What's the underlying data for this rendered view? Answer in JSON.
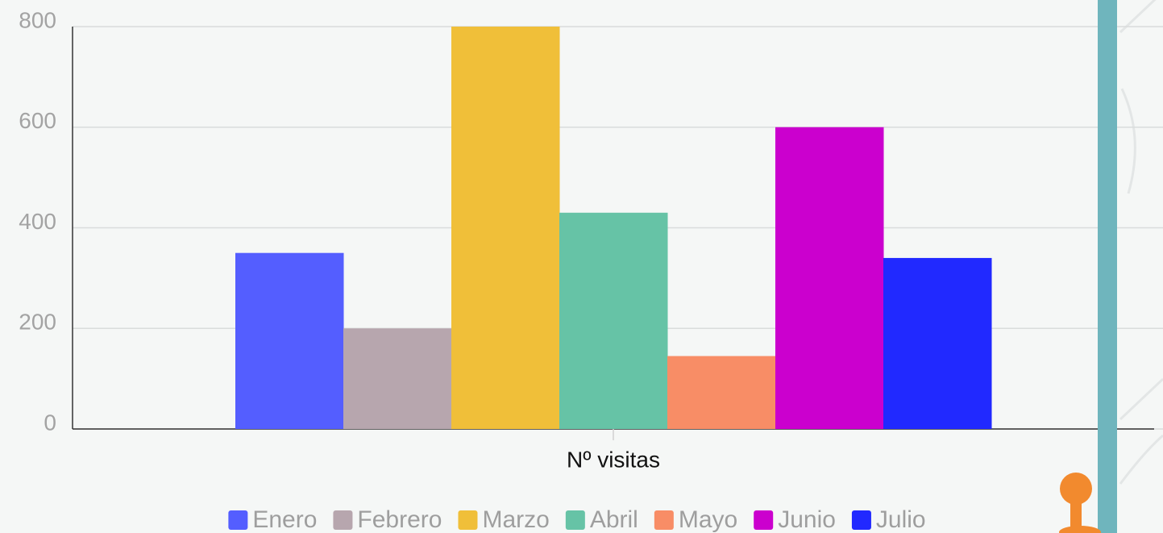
{
  "chart_data": {
    "type": "bar",
    "categories": [
      "Nº visitas"
    ],
    "series": [
      {
        "name": "Enero",
        "color": "#545eff",
        "values": [
          350
        ]
      },
      {
        "name": "Febrero",
        "color": "#b7a6ae",
        "values": [
          200
        ]
      },
      {
        "name": "Marzo",
        "color": "#f0bf39",
        "values": [
          800
        ]
      },
      {
        "name": "Abril",
        "color": "#66c3a6",
        "values": [
          430
        ]
      },
      {
        "name": "Mayo",
        "color": "#f88d66",
        "values": [
          145
        ]
      },
      {
        "name": "Junio",
        "color": "#cb00ce",
        "values": [
          600
        ]
      },
      {
        "name": "Julio",
        "color": "#2129ff",
        "values": [
          340
        ]
      }
    ],
    "ylim": [
      0,
      800
    ],
    "yticks": [
      0,
      200,
      400,
      600,
      800
    ],
    "grid": true,
    "legend": "bottom"
  }
}
